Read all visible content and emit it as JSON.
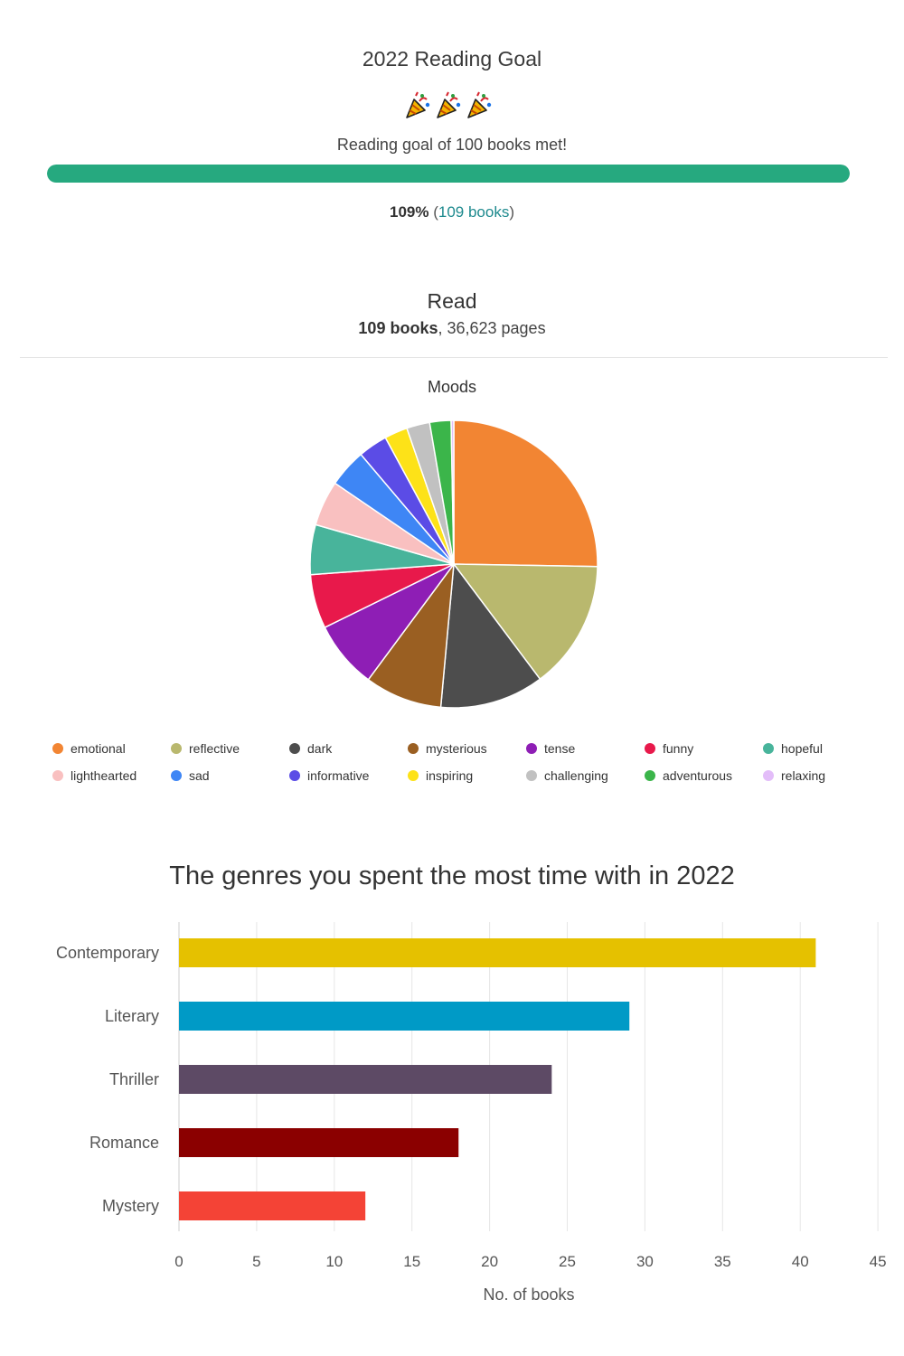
{
  "goal": {
    "title": "2022 Reading Goal",
    "status": "Reading goal of 100 books met!",
    "progress": 1.0,
    "percent": "109%",
    "books_link": "109 books",
    "progress_color": "#26a97f",
    "icons": [
      "party-popper-icon",
      "party-popper-icon",
      "party-popper-icon"
    ]
  },
  "read": {
    "title": "Read",
    "books": "109 books",
    "pages": ", 36,623 pages"
  },
  "chart_data": [
    {
      "type": "pie",
      "title": "Moods",
      "legend_position": "bottom",
      "labels": [
        "emotional",
        "reflective",
        "dark",
        "mysterious",
        "tense",
        "funny",
        "hopeful",
        "lighthearted",
        "sad",
        "informative",
        "inspiring",
        "challenging",
        "adventurous",
        "relaxing"
      ],
      "values": [
        25.3,
        14.5,
        11.7,
        8.7,
        7.6,
        6.1,
        5.6,
        5.1,
        4.3,
        3.3,
        2.6,
        2.6,
        2.4,
        0.3
      ],
      "colors": [
        "#f28533",
        "#b9b86e",
        "#4d4d4d",
        "#9a5f22",
        "#8e1eb5",
        "#e8194b",
        "#48b49b",
        "#f9c0c0",
        "#3e86f5",
        "#5b4ce6",
        "#fde218",
        "#c1c1c1",
        "#3bb54a",
        "#e3bdf9"
      ]
    },
    {
      "type": "bar",
      "orientation": "horizontal",
      "title": "The genres you spent the most time with in 2022",
      "categories": [
        "Contemporary",
        "Literary",
        "Thriller",
        "Romance",
        "Mystery"
      ],
      "values": [
        41,
        29,
        24,
        18,
        12
      ],
      "colors": [
        "#e5c100",
        "#009ac6",
        "#5d4a65",
        "#8b0000",
        "#f44336"
      ],
      "xlabel": "No. of books",
      "ylabel": "",
      "xlim": [
        0,
        45
      ],
      "xticks": [
        0,
        5,
        10,
        15,
        20,
        25,
        30,
        35,
        40,
        45
      ],
      "grid": true
    }
  ]
}
